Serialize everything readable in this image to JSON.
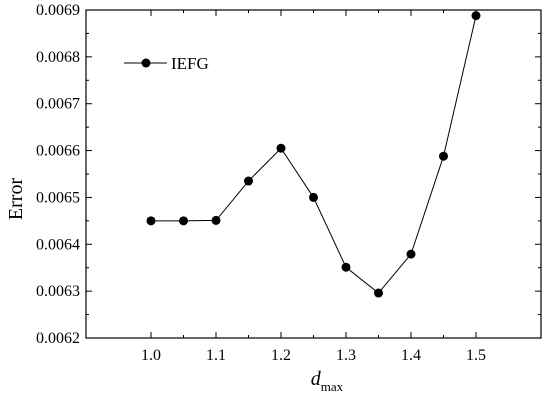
{
  "chart_data": {
    "type": "line",
    "xlabel": "d",
    "xlabel_sub": "max",
    "ylabel": "Error",
    "xlim": [
      0.9,
      1.6
    ],
    "ylim": [
      0.0062,
      0.0069
    ],
    "xticks": [
      "1.0",
      "1.1",
      "1.2",
      "1.3",
      "1.4",
      "1.5"
    ],
    "yticks": [
      "0.0062",
      "0.0063",
      "0.0064",
      "0.0065",
      "0.0066",
      "0.0067",
      "0.0068",
      "0.0069"
    ],
    "grid": false,
    "legend_position": "top-left",
    "series": [
      {
        "name": "IEFG",
        "color": "#000000",
        "marker": "filled-circle",
        "x": [
          1.0,
          1.05,
          1.1,
          1.15,
          1.2,
          1.25,
          1.3,
          1.35,
          1.4,
          1.45,
          1.5
        ],
        "y": [
          0.00645,
          0.00645,
          0.006451,
          0.006535,
          0.006605,
          0.0065,
          0.006351,
          0.006296,
          0.006379,
          0.006588,
          0.006888
        ]
      }
    ]
  }
}
